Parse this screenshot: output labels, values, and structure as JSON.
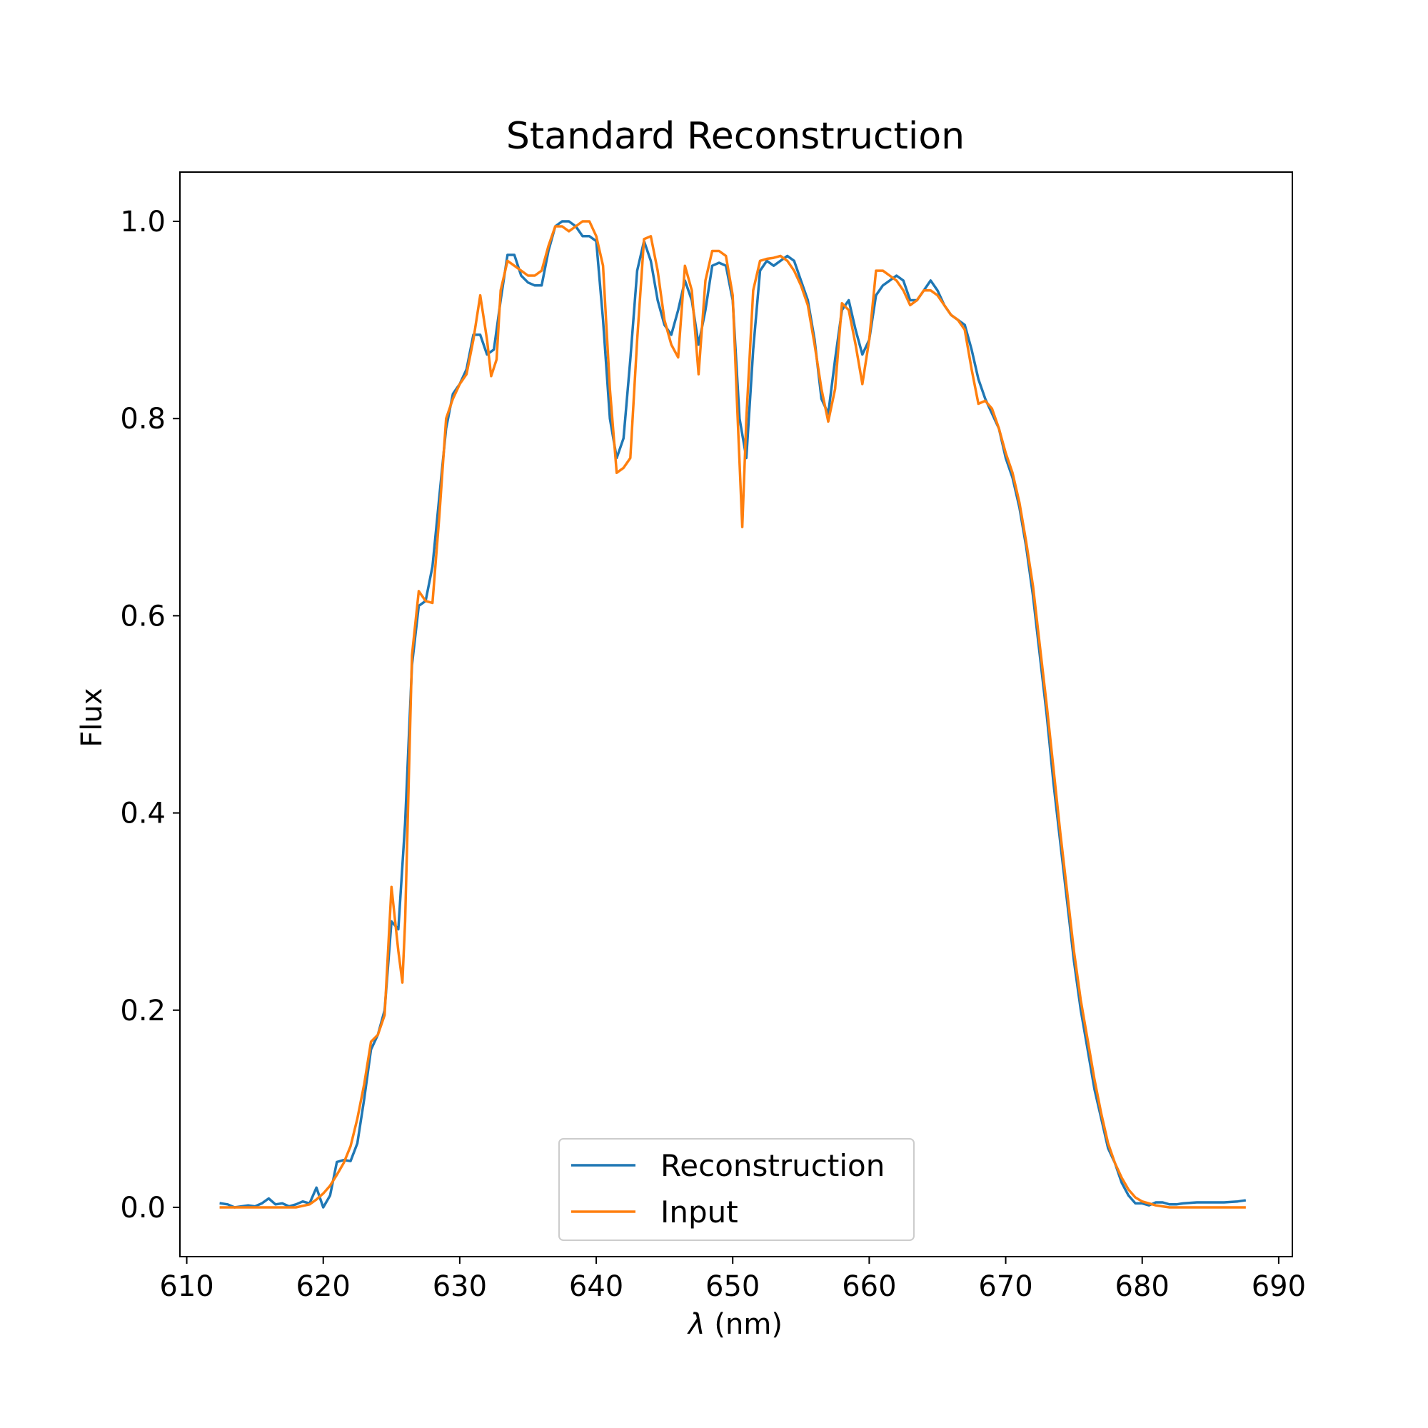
{
  "chart_data": {
    "type": "line",
    "title": "Standard Reconstruction",
    "xlabel_symbol": "λ",
    "xlabel_unit": " (nm)",
    "ylabel": "Flux",
    "xlim": [
      609.5,
      691
    ],
    "ylim": [
      -0.05,
      1.05
    ],
    "xticks": [
      610,
      620,
      630,
      640,
      650,
      660,
      670,
      680,
      690
    ],
    "yticks": [
      0.0,
      0.2,
      0.4,
      0.6,
      0.8,
      1.0
    ],
    "grid": false,
    "legend_position": "lower center",
    "series": [
      {
        "name": "Reconstruction",
        "color": "#1f77b4",
        "points": [
          [
            612.5,
            0.004
          ],
          [
            613.0,
            0.003
          ],
          [
            613.5,
            0.0
          ],
          [
            614.0,
            0.001
          ],
          [
            614.5,
            0.002
          ],
          [
            615.0,
            0.001
          ],
          [
            615.5,
            0.004
          ],
          [
            616.0,
            0.009
          ],
          [
            616.5,
            0.003
          ],
          [
            617.0,
            0.004
          ],
          [
            617.5,
            0.001
          ],
          [
            618.0,
            0.003
          ],
          [
            618.5,
            0.006
          ],
          [
            619.0,
            0.004
          ],
          [
            619.5,
            0.02
          ],
          [
            620.0,
            0.0
          ],
          [
            620.5,
            0.012
          ],
          [
            621.0,
            0.046
          ],
          [
            621.5,
            0.048
          ],
          [
            622.0,
            0.047
          ],
          [
            622.5,
            0.065
          ],
          [
            623.0,
            0.11
          ],
          [
            623.5,
            0.16
          ],
          [
            624.0,
            0.175
          ],
          [
            624.5,
            0.2
          ],
          [
            625.0,
            0.29
          ],
          [
            625.5,
            0.282
          ],
          [
            626.0,
            0.39
          ],
          [
            626.5,
            0.55
          ],
          [
            627.0,
            0.61
          ],
          [
            627.5,
            0.615
          ],
          [
            628.0,
            0.65
          ],
          [
            628.5,
            0.72
          ],
          [
            629.0,
            0.79
          ],
          [
            629.5,
            0.825
          ],
          [
            630.0,
            0.835
          ],
          [
            630.5,
            0.85
          ],
          [
            631.0,
            0.885
          ],
          [
            631.5,
            0.885
          ],
          [
            632.0,
            0.865
          ],
          [
            632.5,
            0.87
          ],
          [
            633.0,
            0.92
          ],
          [
            633.5,
            0.966
          ],
          [
            634.0,
            0.966
          ],
          [
            634.5,
            0.945
          ],
          [
            635.0,
            0.938
          ],
          [
            635.5,
            0.935
          ],
          [
            636.0,
            0.935
          ],
          [
            636.5,
            0.97
          ],
          [
            637.0,
            0.995
          ],
          [
            637.5,
            1.0
          ],
          [
            638.0,
            1.0
          ],
          [
            638.5,
            0.995
          ],
          [
            639.0,
            0.985
          ],
          [
            639.5,
            0.985
          ],
          [
            640.0,
            0.98
          ],
          [
            640.5,
            0.9
          ],
          [
            641.0,
            0.8
          ],
          [
            641.5,
            0.76
          ],
          [
            642.0,
            0.78
          ],
          [
            642.5,
            0.86
          ],
          [
            643.0,
            0.95
          ],
          [
            643.5,
            0.98
          ],
          [
            644.0,
            0.96
          ],
          [
            644.5,
            0.92
          ],
          [
            645.0,
            0.895
          ],
          [
            645.5,
            0.885
          ],
          [
            646.0,
            0.91
          ],
          [
            646.5,
            0.94
          ],
          [
            647.0,
            0.92
          ],
          [
            647.5,
            0.875
          ],
          [
            648.0,
            0.91
          ],
          [
            648.5,
            0.955
          ],
          [
            649.0,
            0.958
          ],
          [
            649.5,
            0.955
          ],
          [
            650.0,
            0.92
          ],
          [
            650.5,
            0.8
          ],
          [
            651.0,
            0.76
          ],
          [
            651.5,
            0.87
          ],
          [
            652.0,
            0.95
          ],
          [
            652.5,
            0.96
          ],
          [
            653.0,
            0.955
          ],
          [
            653.5,
            0.96
          ],
          [
            654.0,
            0.965
          ],
          [
            654.5,
            0.96
          ],
          [
            655.0,
            0.94
          ],
          [
            655.5,
            0.92
          ],
          [
            656.0,
            0.88
          ],
          [
            656.5,
            0.82
          ],
          [
            657.0,
            0.805
          ],
          [
            657.5,
            0.86
          ],
          [
            658.0,
            0.91
          ],
          [
            658.5,
            0.92
          ],
          [
            659.0,
            0.89
          ],
          [
            659.5,
            0.865
          ],
          [
            660.0,
            0.88
          ],
          [
            660.5,
            0.925
          ],
          [
            661.0,
            0.935
          ],
          [
            661.5,
            0.94
          ],
          [
            662.0,
            0.945
          ],
          [
            662.5,
            0.94
          ],
          [
            663.0,
            0.92
          ],
          [
            663.5,
            0.92
          ],
          [
            664.0,
            0.93
          ],
          [
            664.5,
            0.94
          ],
          [
            665.0,
            0.93
          ],
          [
            665.5,
            0.915
          ],
          [
            666.0,
            0.905
          ],
          [
            666.5,
            0.9
          ],
          [
            667.0,
            0.895
          ],
          [
            667.5,
            0.87
          ],
          [
            668.0,
            0.84
          ],
          [
            668.5,
            0.82
          ],
          [
            669.0,
            0.805
          ],
          [
            669.5,
            0.79
          ],
          [
            670.0,
            0.76
          ],
          [
            670.5,
            0.74
          ],
          [
            671.0,
            0.71
          ],
          [
            671.5,
            0.67
          ],
          [
            672.0,
            0.62
          ],
          [
            672.5,
            0.56
          ],
          [
            673.0,
            0.5
          ],
          [
            673.5,
            0.43
          ],
          [
            674.0,
            0.37
          ],
          [
            674.5,
            0.31
          ],
          [
            675.0,
            0.25
          ],
          [
            675.5,
            0.2
          ],
          [
            676.0,
            0.16
          ],
          [
            676.5,
            0.12
          ],
          [
            677.0,
            0.09
          ],
          [
            677.5,
            0.06
          ],
          [
            678.0,
            0.045
          ],
          [
            678.5,
            0.025
          ],
          [
            679.0,
            0.012
          ],
          [
            679.5,
            0.004
          ],
          [
            680.0,
            0.004
          ],
          [
            680.5,
            0.002
          ],
          [
            681.0,
            0.005
          ],
          [
            681.5,
            0.005
          ],
          [
            682.0,
            0.003
          ],
          [
            682.5,
            0.003
          ],
          [
            683.0,
            0.004
          ],
          [
            684.0,
            0.005
          ],
          [
            685.0,
            0.005
          ],
          [
            686.0,
            0.005
          ],
          [
            687.0,
            0.006
          ],
          [
            687.5,
            0.007
          ]
        ]
      },
      {
        "name": "Input",
        "color": "#ff7f0e",
        "points": [
          [
            612.5,
            0.0
          ],
          [
            614.0,
            0.0
          ],
          [
            616.0,
            0.0
          ],
          [
            618.0,
            0.0
          ],
          [
            619.0,
            0.003
          ],
          [
            619.5,
            0.008
          ],
          [
            620.0,
            0.014
          ],
          [
            620.5,
            0.022
          ],
          [
            621.0,
            0.033
          ],
          [
            621.5,
            0.045
          ],
          [
            622.0,
            0.062
          ],
          [
            622.5,
            0.09
          ],
          [
            623.0,
            0.125
          ],
          [
            623.5,
            0.168
          ],
          [
            624.0,
            0.175
          ],
          [
            624.5,
            0.195
          ],
          [
            625.0,
            0.325
          ],
          [
            625.5,
            0.26
          ],
          [
            625.8,
            0.228
          ],
          [
            626.0,
            0.29
          ],
          [
            626.5,
            0.56
          ],
          [
            627.0,
            0.625
          ],
          [
            627.5,
            0.615
          ],
          [
            628.0,
            0.613
          ],
          [
            628.5,
            0.7
          ],
          [
            629.0,
            0.8
          ],
          [
            629.5,
            0.82
          ],
          [
            630.0,
            0.835
          ],
          [
            630.5,
            0.845
          ],
          [
            631.0,
            0.88
          ],
          [
            631.5,
            0.925
          ],
          [
            632.0,
            0.88
          ],
          [
            632.3,
            0.843
          ],
          [
            632.7,
            0.86
          ],
          [
            633.0,
            0.93
          ],
          [
            633.5,
            0.96
          ],
          [
            634.0,
            0.955
          ],
          [
            634.5,
            0.95
          ],
          [
            635.0,
            0.945
          ],
          [
            635.5,
            0.945
          ],
          [
            636.0,
            0.95
          ],
          [
            636.5,
            0.975
          ],
          [
            637.0,
            0.995
          ],
          [
            637.5,
            0.995
          ],
          [
            638.0,
            0.99
          ],
          [
            638.5,
            0.995
          ],
          [
            639.0,
            1.0
          ],
          [
            639.5,
            1.0
          ],
          [
            640.0,
            0.985
          ],
          [
            640.5,
            0.955
          ],
          [
            641.0,
            0.83
          ],
          [
            641.5,
            0.745
          ],
          [
            642.0,
            0.75
          ],
          [
            642.5,
            0.76
          ],
          [
            643.0,
            0.88
          ],
          [
            643.5,
            0.982
          ],
          [
            644.0,
            0.985
          ],
          [
            644.5,
            0.95
          ],
          [
            645.0,
            0.9
          ],
          [
            645.5,
            0.875
          ],
          [
            646.0,
            0.862
          ],
          [
            646.5,
            0.955
          ],
          [
            647.0,
            0.93
          ],
          [
            647.5,
            0.845
          ],
          [
            648.0,
            0.94
          ],
          [
            648.5,
            0.97
          ],
          [
            649.0,
            0.97
          ],
          [
            649.5,
            0.965
          ],
          [
            650.0,
            0.925
          ],
          [
            650.3,
            0.82
          ],
          [
            650.7,
            0.69
          ],
          [
            651.0,
            0.8
          ],
          [
            651.5,
            0.93
          ],
          [
            652.0,
            0.96
          ],
          [
            652.5,
            0.962
          ],
          [
            653.0,
            0.963
          ],
          [
            653.5,
            0.965
          ],
          [
            654.0,
            0.96
          ],
          [
            654.5,
            0.95
          ],
          [
            655.0,
            0.935
          ],
          [
            655.5,
            0.915
          ],
          [
            656.0,
            0.875
          ],
          [
            656.5,
            0.83
          ],
          [
            657.0,
            0.797
          ],
          [
            657.5,
            0.83
          ],
          [
            658.0,
            0.917
          ],
          [
            658.5,
            0.91
          ],
          [
            659.0,
            0.875
          ],
          [
            659.5,
            0.835
          ],
          [
            660.0,
            0.88
          ],
          [
            660.5,
            0.95
          ],
          [
            661.0,
            0.95
          ],
          [
            661.5,
            0.945
          ],
          [
            662.0,
            0.94
          ],
          [
            662.5,
            0.93
          ],
          [
            663.0,
            0.915
          ],
          [
            663.5,
            0.92
          ],
          [
            664.0,
            0.93
          ],
          [
            664.5,
            0.93
          ],
          [
            665.0,
            0.925
          ],
          [
            665.5,
            0.915
          ],
          [
            666.0,
            0.905
          ],
          [
            666.5,
            0.9
          ],
          [
            667.0,
            0.89
          ],
          [
            667.5,
            0.85
          ],
          [
            668.0,
            0.815
          ],
          [
            668.5,
            0.818
          ],
          [
            669.0,
            0.81
          ],
          [
            669.5,
            0.79
          ],
          [
            670.0,
            0.765
          ],
          [
            670.5,
            0.745
          ],
          [
            671.0,
            0.715
          ],
          [
            671.5,
            0.675
          ],
          [
            672.0,
            0.63
          ],
          [
            672.5,
            0.57
          ],
          [
            673.0,
            0.51
          ],
          [
            673.5,
            0.445
          ],
          [
            674.0,
            0.38
          ],
          [
            674.5,
            0.32
          ],
          [
            675.0,
            0.26
          ],
          [
            675.5,
            0.21
          ],
          [
            676.0,
            0.17
          ],
          [
            676.5,
            0.13
          ],
          [
            677.0,
            0.095
          ],
          [
            677.5,
            0.065
          ],
          [
            678.0,
            0.045
          ],
          [
            678.5,
            0.03
          ],
          [
            679.0,
            0.018
          ],
          [
            679.5,
            0.01
          ],
          [
            680.0,
            0.006
          ],
          [
            680.5,
            0.004
          ],
          [
            681.0,
            0.002
          ],
          [
            681.5,
            0.001
          ],
          [
            682.0,
            0.0
          ],
          [
            684.0,
            0.0
          ],
          [
            686.0,
            0.0
          ],
          [
            687.5,
            0.0
          ]
        ]
      }
    ]
  }
}
